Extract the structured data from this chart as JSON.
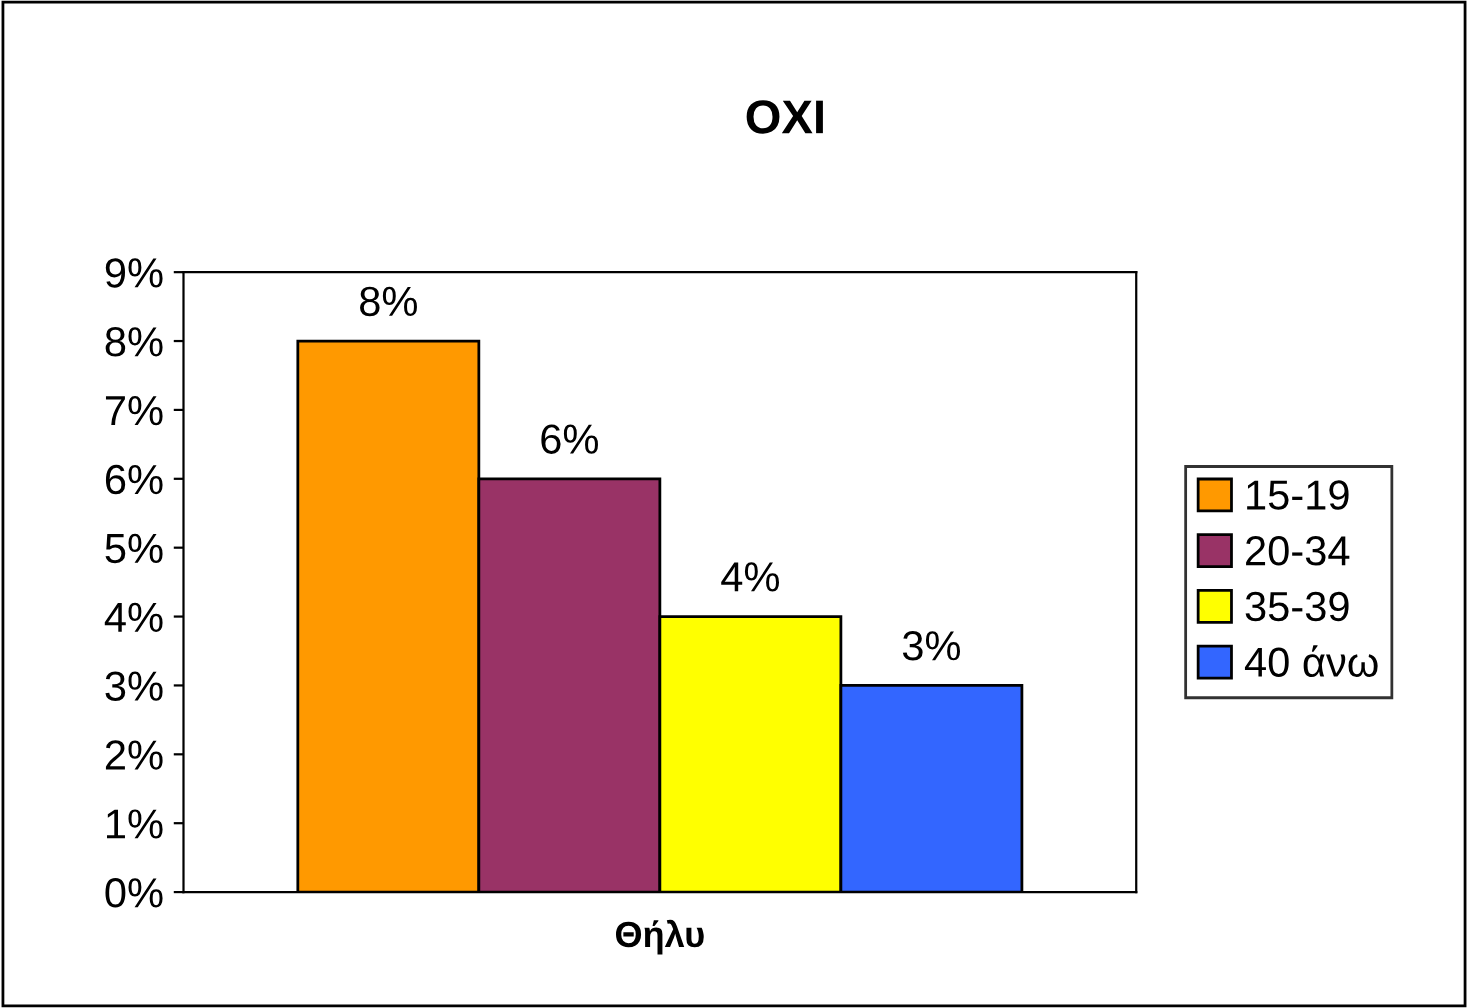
{
  "chart_data": {
    "type": "bar",
    "title": "OXI",
    "categories": [
      "Θήλυ"
    ],
    "series": [
      {
        "name": "15-19",
        "color": "#ff9900",
        "values": [
          8
        ],
        "value_labels": [
          "8%"
        ]
      },
      {
        "name": "20-34",
        "color": "#993366",
        "values": [
          6
        ],
        "value_labels": [
          "6%"
        ]
      },
      {
        "name": "35-39",
        "color": "#ffff00",
        "values": [
          4
        ],
        "value_labels": [
          "4%"
        ]
      },
      {
        "name": "40 άνω",
        "color": "#3366ff",
        "values": [
          3
        ],
        "value_labels": [
          "3%"
        ]
      }
    ],
    "ylim": [
      0,
      9
    ],
    "yticks": [
      {
        "value": 0,
        "label": "0%"
      },
      {
        "value": 1,
        "label": "1%"
      },
      {
        "value": 2,
        "label": "2%"
      },
      {
        "value": 3,
        "label": "3%"
      },
      {
        "value": 4,
        "label": "4%"
      },
      {
        "value": 5,
        "label": "5%"
      },
      {
        "value": 6,
        "label": "6%"
      },
      {
        "value": 7,
        "label": "7%"
      },
      {
        "value": 8,
        "label": "8%"
      },
      {
        "value": 9,
        "label": "9%"
      }
    ],
    "legend": "right"
  }
}
